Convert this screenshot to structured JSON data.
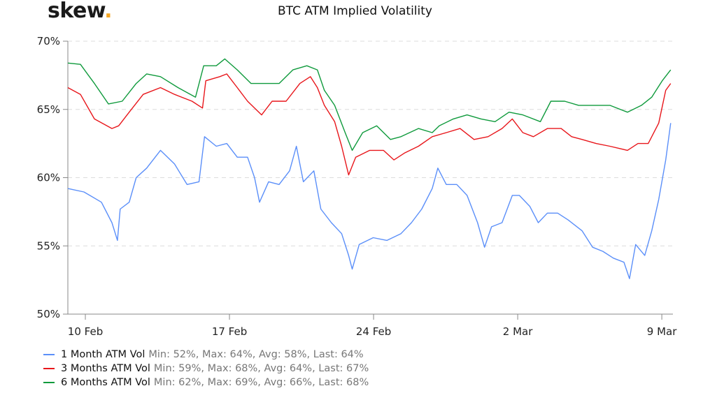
{
  "logo": {
    "text": "skew",
    "dot": "."
  },
  "chart_data": {
    "type": "line",
    "title": "BTC ATM Implied Volatility",
    "xlabel": "",
    "ylabel": "",
    "x_unit": "days since 10 Feb",
    "xlim": [
      -0.85,
      28.54
    ],
    "ylim": [
      50,
      70
    ],
    "yticks": [
      {
        "value": 70,
        "label": "70%"
      },
      {
        "value": 65,
        "label": "65%"
      },
      {
        "value": 60,
        "label": "60%"
      },
      {
        "value": 55,
        "label": "55%"
      },
      {
        "value": 50,
        "label": "50%"
      }
    ],
    "xticks": [
      {
        "value": 0,
        "label": "10 Feb"
      },
      {
        "value": 7,
        "label": "17 Feb"
      },
      {
        "value": 14,
        "label": "24 Feb"
      },
      {
        "value": 21,
        "label": "2 Mar"
      },
      {
        "value": 28,
        "label": "9 Mar"
      }
    ],
    "grid": true,
    "legend_position": "bottom-left",
    "series": [
      {
        "name": "1 Month ATM Vol",
        "stats": "Min: 52%, Max: 64%, Avg: 58%, Last: 64%",
        "color": "#5b8ff9",
        "points": [
          [
            -0.85,
            59.2
          ],
          [
            -0.07,
            58.95
          ],
          [
            0.78,
            58.2
          ],
          [
            1.29,
            56.7
          ],
          [
            1.56,
            55.4
          ],
          [
            1.69,
            57.7
          ],
          [
            2.13,
            58.2
          ],
          [
            2.47,
            60
          ],
          [
            2.98,
            60.7
          ],
          [
            3.65,
            62
          ],
          [
            4.33,
            61
          ],
          [
            4.94,
            59.5
          ],
          [
            5.52,
            59.7
          ],
          [
            5.79,
            63
          ],
          [
            6.36,
            62.3
          ],
          [
            6.87,
            62.5
          ],
          [
            7.38,
            61.5
          ],
          [
            7.88,
            61.5
          ],
          [
            8.22,
            60
          ],
          [
            8.46,
            58.2
          ],
          [
            8.9,
            59.7
          ],
          [
            9.41,
            59.5
          ],
          [
            9.92,
            60.5
          ],
          [
            10.25,
            62.3
          ],
          [
            10.59,
            59.7
          ],
          [
            11.1,
            60.5
          ],
          [
            11.44,
            57.7
          ],
          [
            11.95,
            56.7
          ],
          [
            12.45,
            55.9
          ],
          [
            12.79,
            54.3
          ],
          [
            12.96,
            53.3
          ],
          [
            13.3,
            55.1
          ],
          [
            13.98,
            55.6
          ],
          [
            14.65,
            55.4
          ],
          [
            15.33,
            55.9
          ],
          [
            15.84,
            56.7
          ],
          [
            16.34,
            57.7
          ],
          [
            16.85,
            59.2
          ],
          [
            17.12,
            60.7
          ],
          [
            17.53,
            59.5
          ],
          [
            18.04,
            59.5
          ],
          [
            18.54,
            58.7
          ],
          [
            19.05,
            56.7
          ],
          [
            19.39,
            54.9
          ],
          [
            19.73,
            56.4
          ],
          [
            20.24,
            56.7
          ],
          [
            20.74,
            58.7
          ],
          [
            21.08,
            58.7
          ],
          [
            21.59,
            57.9
          ],
          [
            22.0,
            56.7
          ],
          [
            22.44,
            57.4
          ],
          [
            22.94,
            57.4
          ],
          [
            23.45,
            56.9
          ],
          [
            24.13,
            56.1
          ],
          [
            24.64,
            54.9
          ],
          [
            25.14,
            54.6
          ],
          [
            25.65,
            54.1
          ],
          [
            26.16,
            53.8
          ],
          [
            26.43,
            52.6
          ],
          [
            26.73,
            55.1
          ],
          [
            27.17,
            54.3
          ],
          [
            27.51,
            56.1
          ],
          [
            27.85,
            58.4
          ],
          [
            28.19,
            61.3
          ],
          [
            28.43,
            64
          ]
        ]
      },
      {
        "name": "3 Months ATM Vol",
        "stats": "Min: 59%, Max: 68%, Avg: 64%, Last: 67%",
        "color": "#e8161b",
        "points": [
          [
            -0.85,
            66.6
          ],
          [
            -0.24,
            66.1
          ],
          [
            0.44,
            64.3
          ],
          [
            1.29,
            63.6
          ],
          [
            1.62,
            63.8
          ],
          [
            2.13,
            64.8
          ],
          [
            2.81,
            66.1
          ],
          [
            3.65,
            66.6
          ],
          [
            4.33,
            66.1
          ],
          [
            5.18,
            65.6
          ],
          [
            5.69,
            65.1
          ],
          [
            5.85,
            67.1
          ],
          [
            6.53,
            67.4
          ],
          [
            6.87,
            67.6
          ],
          [
            7.38,
            66.6
          ],
          [
            7.88,
            65.6
          ],
          [
            8.56,
            64.6
          ],
          [
            9.07,
            65.6
          ],
          [
            9.75,
            65.6
          ],
          [
            10.42,
            66.9
          ],
          [
            10.93,
            67.4
          ],
          [
            11.27,
            66.6
          ],
          [
            11.61,
            65.3
          ],
          [
            12.11,
            64.1
          ],
          [
            12.45,
            62.3
          ],
          [
            12.79,
            60.2
          ],
          [
            13.13,
            61.5
          ],
          [
            13.81,
            62
          ],
          [
            14.48,
            62
          ],
          [
            14.99,
            61.3
          ],
          [
            15.5,
            61.8
          ],
          [
            16.18,
            62.3
          ],
          [
            16.85,
            63
          ],
          [
            17.53,
            63.3
          ],
          [
            18.2,
            63.6
          ],
          [
            18.88,
            62.8
          ],
          [
            19.56,
            63
          ],
          [
            20.24,
            63.6
          ],
          [
            20.74,
            64.3
          ],
          [
            21.25,
            63.3
          ],
          [
            21.76,
            63
          ],
          [
            22.44,
            63.6
          ],
          [
            23.11,
            63.6
          ],
          [
            23.62,
            63
          ],
          [
            24.13,
            62.8
          ],
          [
            24.81,
            62.5
          ],
          [
            25.48,
            62.3
          ],
          [
            26.33,
            62
          ],
          [
            26.84,
            62.5
          ],
          [
            27.34,
            62.5
          ],
          [
            27.85,
            64
          ],
          [
            28.19,
            66.4
          ],
          [
            28.43,
            66.9
          ]
        ]
      },
      {
        "name": "6 Months ATM Vol",
        "stats": "Min: 62%, Max: 69%, Avg: 66%, Last: 68%",
        "color": "#0f9a3c",
        "points": [
          [
            -0.85,
            68.4
          ],
          [
            -0.24,
            68.3
          ],
          [
            0.44,
            66.9
          ],
          [
            1.12,
            65.4
          ],
          [
            1.79,
            65.6
          ],
          [
            2.47,
            66.9
          ],
          [
            2.98,
            67.6
          ],
          [
            3.65,
            67.4
          ],
          [
            4.5,
            66.6
          ],
          [
            5.35,
            65.9
          ],
          [
            5.75,
            68.2
          ],
          [
            6.36,
            68.2
          ],
          [
            6.77,
            68.7
          ],
          [
            7.38,
            67.9
          ],
          [
            8.05,
            66.9
          ],
          [
            8.73,
            66.9
          ],
          [
            9.41,
            66.9
          ],
          [
            10.08,
            67.9
          ],
          [
            10.76,
            68.2
          ],
          [
            11.27,
            67.9
          ],
          [
            11.61,
            66.4
          ],
          [
            12.11,
            65.3
          ],
          [
            12.62,
            63.3
          ],
          [
            12.96,
            62
          ],
          [
            13.47,
            63.3
          ],
          [
            14.15,
            63.8
          ],
          [
            14.82,
            62.8
          ],
          [
            15.33,
            63
          ],
          [
            16.18,
            63.6
          ],
          [
            16.85,
            63.3
          ],
          [
            17.19,
            63.8
          ],
          [
            17.87,
            64.3
          ],
          [
            18.54,
            64.6
          ],
          [
            19.22,
            64.3
          ],
          [
            19.9,
            64.1
          ],
          [
            20.58,
            64.8
          ],
          [
            21.25,
            64.6
          ],
          [
            22.1,
            64.1
          ],
          [
            22.61,
            65.6
          ],
          [
            23.28,
            65.6
          ],
          [
            23.96,
            65.3
          ],
          [
            24.64,
            65.3
          ],
          [
            25.48,
            65.3
          ],
          [
            26.33,
            64.8
          ],
          [
            27.01,
            65.3
          ],
          [
            27.51,
            65.9
          ],
          [
            28.02,
            67.1
          ],
          [
            28.43,
            67.9
          ]
        ]
      }
    ]
  }
}
